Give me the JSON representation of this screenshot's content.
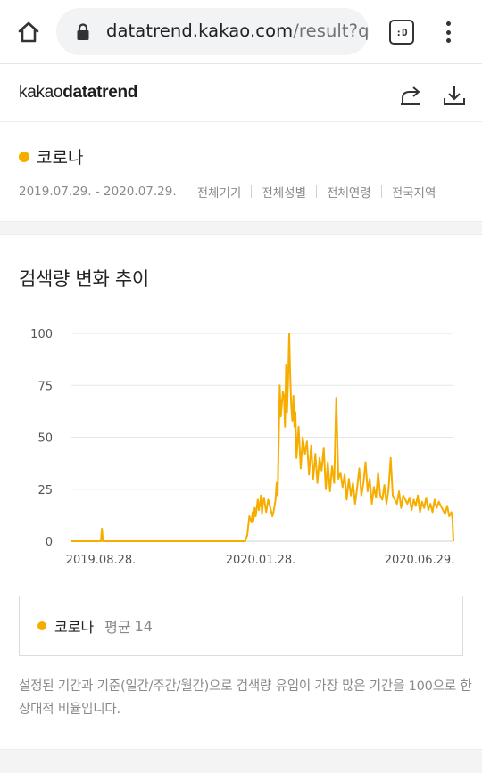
{
  "browser": {
    "url_host": "datatrend.kakao.com",
    "url_path": "/result?q",
    "tabs_label": ":D"
  },
  "header": {
    "logo_light": "kakao",
    "logo_bold": "datatrend"
  },
  "keyword": {
    "name": "코로나",
    "color": "#f7ad00",
    "period": "2019.07.29. - 2020.07.29.",
    "filters": [
      "전체기기",
      "전체성별",
      "전체연령",
      "전국지역"
    ]
  },
  "chart_section": {
    "title": "검색량 변화 추이",
    "legend_name": "코로나",
    "legend_avg_label": "평균",
    "legend_avg_value": "14",
    "note": "설정된 기간과 기준(일간/주간/월간)으로 검색량 유입이 가장 많은 기간을 100으로 한 상대적 비율입니다."
  },
  "chart_data": {
    "type": "line",
    "title": "검색량 변화 추이",
    "xlabel": "",
    "ylabel": "",
    "ylim": [
      0,
      100
    ],
    "yticks": [
      0,
      25,
      50,
      75,
      100
    ],
    "x_tick_labels": [
      "2019.08.28.",
      "2020.01.28.",
      "2020.06.29."
    ],
    "grid": true,
    "legend": "bottom",
    "series": [
      {
        "name": "코로나",
        "color": "#f7ad00",
        "x": [
          "2019-07-29",
          "2019-08-20",
          "2019-08-27",
          "2019-08-28",
          "2019-08-29",
          "2019-09-05",
          "2019-10-15",
          "2019-12-01",
          "2020-01-10",
          "2020-01-12",
          "2020-01-14",
          "2020-01-15",
          "2020-01-16",
          "2020-01-18",
          "2020-01-19",
          "2020-01-20",
          "2020-01-21",
          "2020-01-22",
          "2020-01-24",
          "2020-01-25",
          "2020-01-26",
          "2020-01-27",
          "2020-01-28",
          "2020-01-29",
          "2020-01-30",
          "2020-02-01",
          "2020-02-03",
          "2020-02-05",
          "2020-02-07",
          "2020-02-08",
          "2020-02-10",
          "2020-02-11",
          "2020-02-12",
          "2020-02-14",
          "2020-02-15",
          "2020-02-17",
          "2020-02-18",
          "2020-02-19",
          "2020-02-20",
          "2020-02-21",
          "2020-02-22",
          "2020-02-23",
          "2020-02-24",
          "2020-02-25",
          "2020-02-26",
          "2020-02-27",
          "2020-02-28",
          "2020-02-29",
          "2020-03-01",
          "2020-03-03",
          "2020-03-05",
          "2020-03-07",
          "2020-03-09",
          "2020-03-11",
          "2020-03-13",
          "2020-03-15",
          "2020-03-17",
          "2020-03-19",
          "2020-03-21",
          "2020-03-23",
          "2020-03-25",
          "2020-03-27",
          "2020-03-29",
          "2020-03-31",
          "2020-04-02",
          "2020-04-04",
          "2020-04-06",
          "2020-04-08",
          "2020-04-10",
          "2020-04-12",
          "2020-04-14",
          "2020-04-16",
          "2020-04-18",
          "2020-04-20",
          "2020-04-22",
          "2020-04-24",
          "2020-04-26",
          "2020-04-28",
          "2020-04-30",
          "2020-05-02",
          "2020-05-04",
          "2020-05-06",
          "2020-05-08",
          "2020-05-10",
          "2020-05-12",
          "2020-05-14",
          "2020-05-16",
          "2020-05-18",
          "2020-05-20",
          "2020-05-22",
          "2020-05-24",
          "2020-05-26",
          "2020-05-28",
          "2020-05-30",
          "2020-06-01",
          "2020-06-03",
          "2020-06-05",
          "2020-06-07",
          "2020-06-09",
          "2020-06-11",
          "2020-06-13",
          "2020-06-15",
          "2020-06-17",
          "2020-06-19",
          "2020-06-21",
          "2020-06-23",
          "2020-06-25",
          "2020-06-27",
          "2020-06-29",
          "2020-07-01",
          "2020-07-03",
          "2020-07-05",
          "2020-07-07",
          "2020-07-09",
          "2020-07-11",
          "2020-07-13",
          "2020-07-15",
          "2020-07-17",
          "2020-07-19",
          "2020-07-21",
          "2020-07-23",
          "2020-07-25",
          "2020-07-27",
          "2020-07-28",
          "2020-07-29"
        ],
        "values": [
          0,
          0,
          0,
          6,
          0,
          0,
          0,
          0,
          0,
          0,
          3,
          8,
          12,
          9,
          14,
          10,
          16,
          12,
          20,
          15,
          18,
          22,
          13,
          19,
          21,
          14,
          20,
          16,
          12,
          14,
          20,
          28,
          22,
          75,
          60,
          72,
          70,
          55,
          85,
          62,
          78,
          100,
          80,
          65,
          58,
          70,
          55,
          62,
          40,
          55,
          35,
          50,
          42,
          48,
          32,
          46,
          30,
          42,
          28,
          40,
          34,
          45,
          25,
          38,
          24,
          36,
          28,
          69,
          30,
          33,
          26,
          32,
          20,
          30,
          22,
          28,
          18,
          26,
          35,
          22,
          28,
          38,
          24,
          30,
          18,
          26,
          21,
          33,
          22,
          20,
          27,
          18,
          25,
          40,
          22,
          20,
          18,
          24,
          16,
          22,
          20,
          18,
          21,
          15,
          20,
          17,
          22,
          14,
          19,
          16,
          21,
          15,
          18,
          14,
          20,
          16,
          19,
          17,
          15,
          13,
          17,
          12,
          14,
          11,
          0
        ]
      }
    ]
  }
}
